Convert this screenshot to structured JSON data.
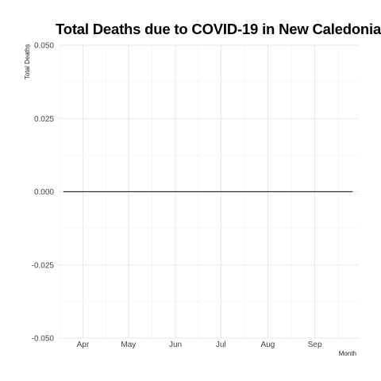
{
  "chart_data": {
    "type": "line",
    "title": "Total Deaths due to COVID-19 in New Caledonia",
    "xlabel": "Month",
    "ylabel": "Total Deaths",
    "x_tick_labels": [
      "Apr",
      "May",
      "Jun",
      "Jul",
      "Aug",
      "Sep"
    ],
    "y_ticks": [
      -0.05,
      -0.025,
      0.0,
      0.025,
      0.05
    ],
    "y_tick_labels": [
      "-0.050",
      "-0.025",
      "0.000",
      "0.025",
      "0.050"
    ],
    "ylim": [
      -0.05,
      0.05
    ],
    "xlim": [
      "2020-03-16",
      "2020-09-30"
    ],
    "x_ticks": [
      "2020-04-01",
      "2020-05-01",
      "2020-06-01",
      "2020-07-01",
      "2020-08-01",
      "2020-09-01"
    ],
    "series": [
      {
        "x": [
          "2020-03-19",
          "2020-09-26"
        ],
        "values": [
          0,
          0
        ],
        "color": "#333333"
      }
    ],
    "grid": true,
    "legend": "none"
  }
}
